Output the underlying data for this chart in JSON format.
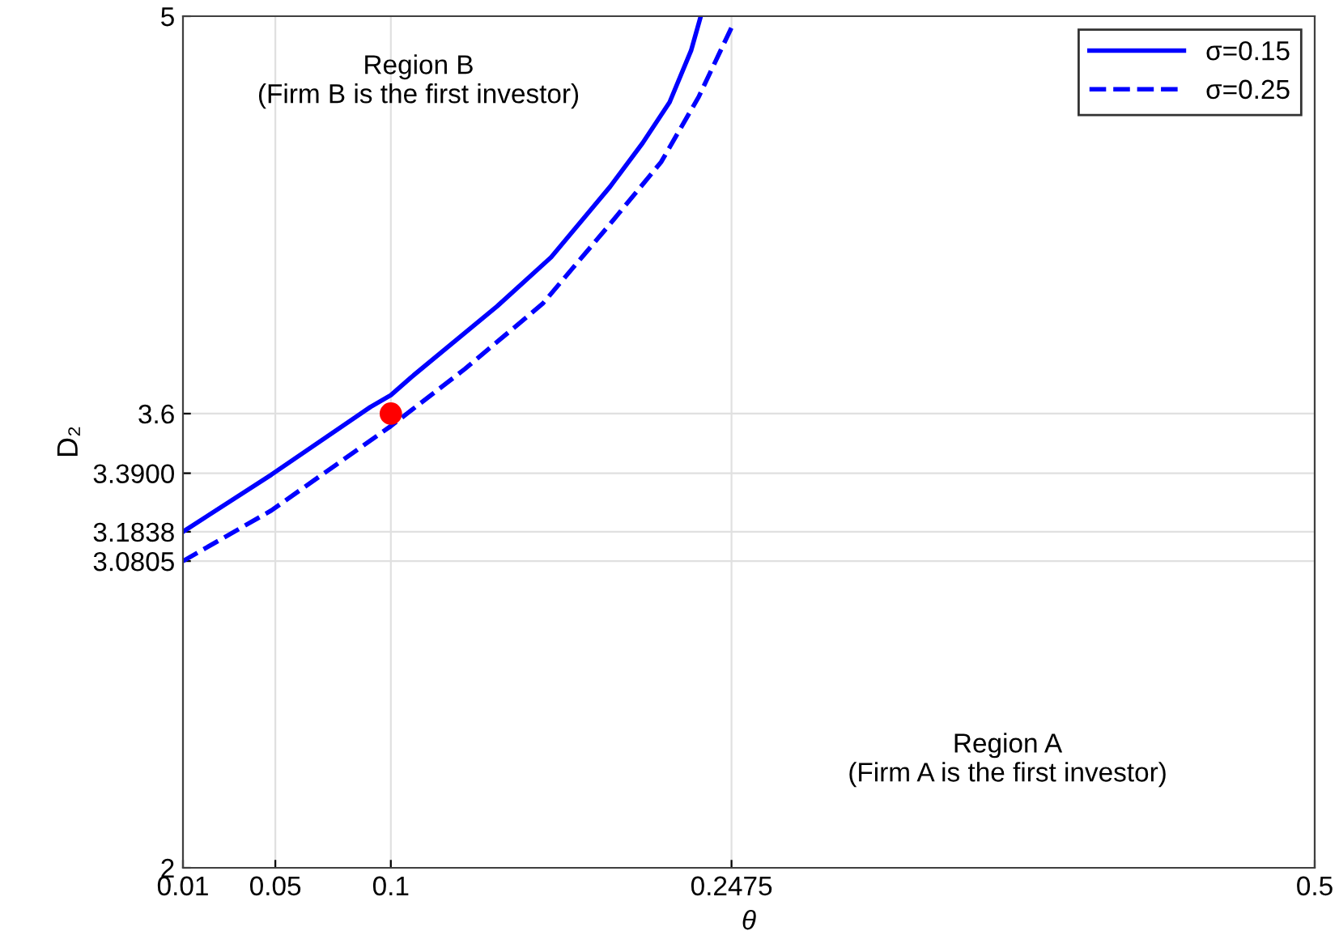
{
  "chart_data": {
    "type": "line",
    "xlabel": "θ",
    "ylabel": "D₂",
    "annotations": [
      "Region B\n(Firm B is the first investor)",
      "Region A\n(Firm A is the first investor)"
    ],
    "xlim": [
      0.01,
      0.5
    ],
    "ylim": [
      2,
      5
    ],
    "xticks": [
      0.01,
      0.05,
      0.1,
      0.2475,
      0.5
    ],
    "yticks": [
      2,
      {
        "value": 3.0805,
        "label": "3.0805"
      },
      {
        "value": 3.1838,
        "label": "3.1838"
      },
      {
        "value": 3.39,
        "label": "3.3900"
      },
      3.6,
      5
    ],
    "grid": true,
    "legend": "top right",
    "series": [
      {
        "name": "σ=0.15",
        "color": "#0000ff",
        "line_style": "solid",
        "x": [
          0.01,
          0.0483,
          0.0911,
          0.1,
          0.1088,
          0.146,
          0.1694,
          0.195,
          0.209,
          0.2207,
          0.23,
          0.2342
        ],
        "values": [
          3.1838,
          3.385,
          3.623,
          3.665,
          3.728,
          3.978,
          4.151,
          4.4,
          4.553,
          4.697,
          4.879,
          5
        ]
      },
      {
        "name": "σ=0.25",
        "color": "#0000ff",
        "line_style": "dashed",
        "x": [
          0.01,
          0.0483,
          0.1,
          0.132,
          0.1657,
          0.1937,
          0.217,
          0.2333,
          0.2475
        ],
        "values": [
          3.0805,
          3.259,
          3.556,
          3.757,
          3.987,
          4.256,
          4.486,
          4.716,
          4.96
        ]
      },
      {
        "type": "scatter",
        "color": "#ff0000",
        "marker": "circle",
        "x": [
          0.1
        ],
        "values": [
          3.6
        ]
      }
    ]
  }
}
